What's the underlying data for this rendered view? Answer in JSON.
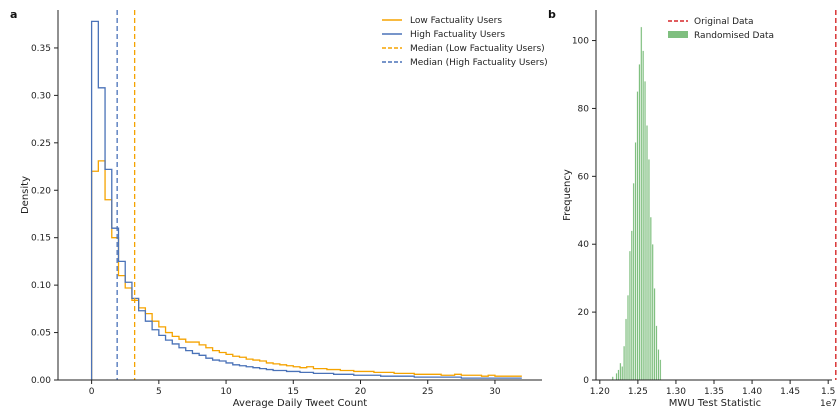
{
  "chart_data": [
    {
      "panel": "a",
      "type": "step-histogram",
      "xlabel": "Average Daily Tweet Count",
      "ylabel": "Density",
      "xlim": [
        -2.5,
        33.5
      ],
      "ylim": [
        0,
        0.39
      ],
      "xticks": [
        0,
        5,
        10,
        15,
        20,
        25,
        30
      ],
      "yticks": [
        0.0,
        0.05,
        0.1,
        0.15,
        0.2,
        0.25,
        0.3,
        0.35
      ],
      "ytick_labels": [
        "0.00",
        "0.05",
        "0.10",
        "0.15",
        "0.20",
        "0.25",
        "0.30",
        "0.35"
      ],
      "legend_placement": "top-right",
      "bin_edges_start": 0,
      "bin_width": 0.5,
      "series": [
        {
          "name": "Low Factuality Users",
          "color": "#f5a300",
          "values": [
            0.22,
            0.231,
            0.19,
            0.15,
            0.11,
            0.097,
            0.084,
            0.076,
            0.07,
            0.062,
            0.056,
            0.05,
            0.046,
            0.043,
            0.04,
            0.04,
            0.037,
            0.034,
            0.031,
            0.029,
            0.027,
            0.025,
            0.024,
            0.022,
            0.021,
            0.02,
            0.018,
            0.017,
            0.016,
            0.015,
            0.014,
            0.013,
            0.014,
            0.012,
            0.012,
            0.011,
            0.011,
            0.01,
            0.01,
            0.009,
            0.009,
            0.009,
            0.008,
            0.008,
            0.008,
            0.007,
            0.007,
            0.007,
            0.006,
            0.006,
            0.006,
            0.006,
            0.005,
            0.005,
            0.006,
            0.005,
            0.005,
            0.005,
            0.004,
            0.005,
            0.004,
            0.004,
            0.004,
            0.004
          ]
        },
        {
          "name": "High Factuality Users",
          "color": "#4a72b8",
          "values": [
            0.378,
            0.308,
            0.222,
            0.16,
            0.125,
            0.103,
            0.086,
            0.073,
            0.062,
            0.053,
            0.047,
            0.042,
            0.038,
            0.034,
            0.031,
            0.028,
            0.026,
            0.023,
            0.021,
            0.02,
            0.018,
            0.016,
            0.015,
            0.014,
            0.013,
            0.012,
            0.011,
            0.01,
            0.01,
            0.009,
            0.009,
            0.008,
            0.008,
            0.007,
            0.007,
            0.007,
            0.006,
            0.006,
            0.006,
            0.005,
            0.005,
            0.005,
            0.005,
            0.004,
            0.004,
            0.004,
            0.004,
            0.004,
            0.003,
            0.003,
            0.003,
            0.003,
            0.003,
            0.003,
            0.003,
            0.002,
            0.002,
            0.002,
            0.002,
            0.002,
            0.002,
            0.002,
            0.002,
            0.002
          ]
        }
      ],
      "medians": [
        {
          "name": "Median (Low Factuality Users)",
          "color": "#f5a300",
          "x": 3.2
        },
        {
          "name": "Median (High Factuality Users)",
          "color": "#4a72b8",
          "x": 1.9
        }
      ]
    },
    {
      "panel": "b",
      "type": "bar",
      "xlabel": "MWU Test Statistic",
      "ylabel": "Frequency",
      "x_offset_text": "1e7",
      "xlim": [
        1.195,
        1.505
      ],
      "ylim": [
        0,
        109
      ],
      "xticks": [
        1.2,
        1.25,
        1.3,
        1.35,
        1.4,
        1.45,
        1.5
      ],
      "xtick_labels": [
        "1.20",
        "1.25",
        "1.30",
        "1.35",
        "1.40",
        "1.45",
        "1.5"
      ],
      "yticks": [
        0,
        20,
        40,
        60,
        80,
        100
      ],
      "legend_placement": "top-center",
      "bin_start": 1.216,
      "bin_width": 0.0025,
      "series": [
        {
          "name": "Randomised Data",
          "color": "#7fbf7f",
          "values": [
            1,
            0,
            2,
            3,
            5,
            4,
            10,
            18,
            25,
            38,
            44,
            58,
            70,
            85,
            93,
            104,
            97,
            88,
            75,
            65,
            48,
            40,
            27,
            16,
            9,
            6
          ]
        }
      ],
      "reference_line": {
        "name": "Original Data",
        "color": "#d62728",
        "x": 1.51
      }
    }
  ]
}
